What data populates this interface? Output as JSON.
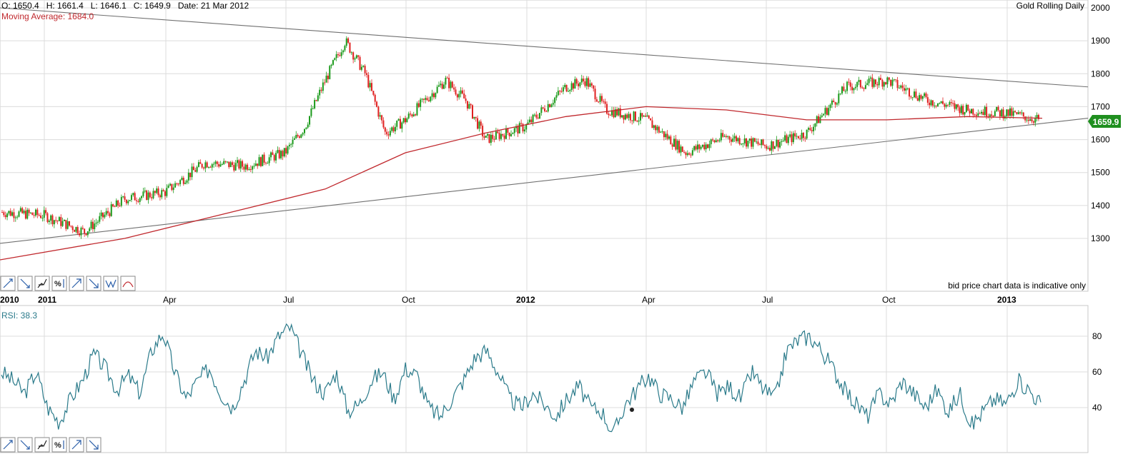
{
  "header": {
    "ohlc_line": "O: 1650.4   H: 1661.4   L: 1646.1   C: 1649.9   Date: 21 Mar 2012",
    "moving_average_label": "Moving Average: 1684.0",
    "instrument_title": "Gold Rolling Daily",
    "disclaimer": "bid price chart data is indicative only"
  },
  "price_panel": {
    "current_price_label": "1659.9",
    "y_ticks": [
      "2000",
      "1900",
      "1800",
      "1700",
      "1600",
      "1500",
      "1400",
      "1300"
    ]
  },
  "rsi_panel": {
    "label": "RSI: 38.3",
    "y_ticks": [
      "80",
      "60",
      "40"
    ]
  },
  "x_axis": {
    "labels": [
      "2010",
      "2011",
      "Apr",
      "Jul",
      "Oct",
      "2012",
      "Apr",
      "Jul",
      "Oct",
      "2013"
    ]
  },
  "toolbars": {
    "price_tools": [
      "trend-line-tool",
      "down-trend-tool",
      "fibonacci-tool",
      "percent-tool",
      "up-arrow-tool",
      "down-arrow-tool",
      "wave-tool",
      "arc-tool"
    ],
    "rsi_tools": [
      "trend-line-tool",
      "down-trend-tool",
      "fibonacci-tool",
      "percent-tool",
      "up-arrow-tool",
      "down-arrow-tool"
    ]
  },
  "colors": {
    "up_candle": "#1a9a1a",
    "down_candle": "#e02020",
    "moving_average": "#c0282d",
    "trendline": "#707070",
    "rsi_line": "#2a7a8a",
    "current_price_badge": "#1f8f1f",
    "grid": "#dcdcdc"
  },
  "chart_data": [
    {
      "type": "candlestick",
      "title": "Gold Rolling Daily",
      "ylim": [
        1200,
        2000
      ],
      "y_tick_values": [
        2000,
        1900,
        1800,
        1700,
        1600,
        1500,
        1400,
        1300
      ],
      "x_labels": [
        "2010",
        "2011",
        "Apr",
        "Jul",
        "Oct",
        "2012",
        "Apr",
        "Jul",
        "Oct",
        "2013"
      ],
      "close_path": [
        [
          "2010-12",
          1380
        ],
        [
          "2011-01",
          1370
        ],
        [
          "2011-02",
          1320
        ],
        [
          "2011-03",
          1420
        ],
        [
          "2011-04",
          1440
        ],
        [
          "2011-05",
          1530
        ],
        [
          "2011-06",
          1520
        ],
        [
          "2011-07",
          1560
        ],
        [
          "2011-07b",
          1640
        ],
        [
          "2011-08",
          1780
        ],
        [
          "2011-08b",
          1900
        ],
        [
          "2011-09",
          1800
        ],
        [
          "2011-09b",
          1620
        ],
        [
          "2011-10",
          1660
        ],
        [
          "2011-11",
          1780
        ],
        [
          "2011-11b",
          1720
        ],
        [
          "2011-12",
          1600
        ],
        [
          "2012-01",
          1640
        ],
        [
          "2012-02",
          1760
        ],
        [
          "2012-02b",
          1780
        ],
        [
          "2012-03",
          1690
        ],
        [
          "2012-04",
          1660
        ],
        [
          "2012-05",
          1560
        ],
        [
          "2012-06",
          1610
        ],
        [
          "2012-07",
          1580
        ],
        [
          "2012-08",
          1620
        ],
        [
          "2012-09",
          1760
        ],
        [
          "2012-10",
          1780
        ],
        [
          "2012-11",
          1720
        ],
        [
          "2012-12",
          1690
        ],
        [
          "2013-01",
          1680
        ],
        [
          "2013-01b",
          1660
        ]
      ],
      "moving_average": {
        "name": "Moving Average",
        "points": [
          [
            "2010-12",
            1235
          ],
          [
            "2011-03",
            1300
          ],
          [
            "2011-06",
            1390
          ],
          [
            "2011-08",
            1450
          ],
          [
            "2011-10",
            1560
          ],
          [
            "2011-12",
            1620
          ],
          [
            "2012-02",
            1670
          ],
          [
            "2012-04",
            1700
          ],
          [
            "2012-06",
            1690
          ],
          [
            "2012-08",
            1660
          ],
          [
            "2012-10",
            1660
          ],
          [
            "2012-12",
            1670
          ],
          [
            "2013-01",
            1665
          ]
        ]
      },
      "trendlines": [
        {
          "start": [
            "2010-12",
            2000
          ],
          "end": [
            "2013-03",
            1760
          ]
        },
        {
          "start": [
            "2010-12",
            1285
          ],
          "end": [
            "2013-03",
            1665
          ]
        }
      ]
    },
    {
      "type": "line",
      "title": "RSI",
      "ylim": [
        20,
        90
      ],
      "y_tick_values": [
        80,
        60,
        40
      ],
      "series": [
        {
          "name": "RSI",
          "values": [
            60,
            55,
            48,
            60,
            40,
            32,
            45,
            55,
            70,
            62,
            50,
            58,
            48,
            72,
            82,
            60,
            45,
            55,
            62,
            48,
            40,
            55,
            72,
            68,
            80,
            85,
            70,
            55,
            48,
            60,
            38,
            42,
            55,
            60,
            45,
            62,
            58,
            40,
            35,
            45,
            55,
            68,
            72,
            60,
            45,
            40,
            48,
            42,
            35,
            45,
            52,
            40,
            38,
            25,
            42,
            50,
            58,
            48,
            45,
            40,
            55,
            60,
            48,
            52,
            45,
            60,
            50,
            45,
            72,
            78,
            80,
            72,
            62,
            50,
            42,
            35,
            48,
            42,
            55,
            48,
            40,
            50,
            38,
            48,
            30,
            38,
            45,
            42,
            55,
            50,
            42
          ]
        }
      ]
    }
  ]
}
